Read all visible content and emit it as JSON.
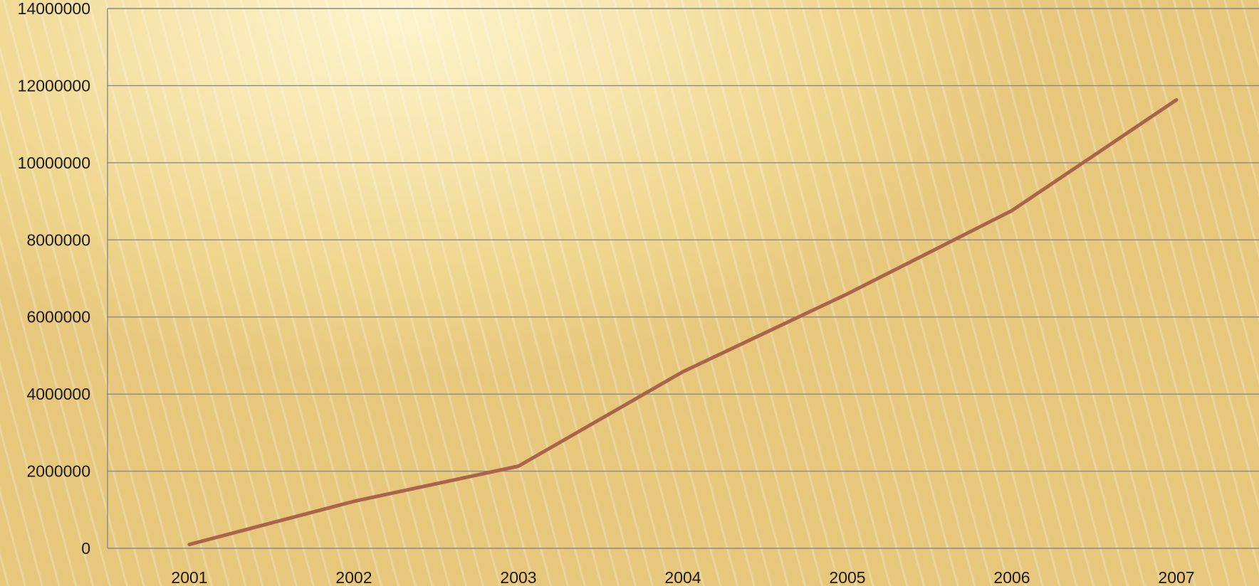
{
  "chart_data": {
    "type": "line",
    "title": "",
    "xlabel": "",
    "ylabel": "",
    "categories": [
      "2001",
      "2002",
      "2003",
      "2004",
      "2005",
      "2006",
      "2007"
    ],
    "series": [
      {
        "values": [
          100000,
          1220000,
          2130000,
          4580000,
          6600000,
          8760000,
          11630000
        ],
        "color": "#a9644a"
      }
    ],
    "ylim": [
      0,
      14000000
    ],
    "yticks": [
      0,
      2000000,
      4000000,
      6000000,
      8000000,
      10000000,
      12000000,
      14000000
    ],
    "ytick_labels": [
      "0",
      "2000000",
      "4000000",
      "6000000",
      "8000000",
      "10000000",
      "12000000",
      "14000000"
    ],
    "grid": true,
    "legend": "none"
  }
}
